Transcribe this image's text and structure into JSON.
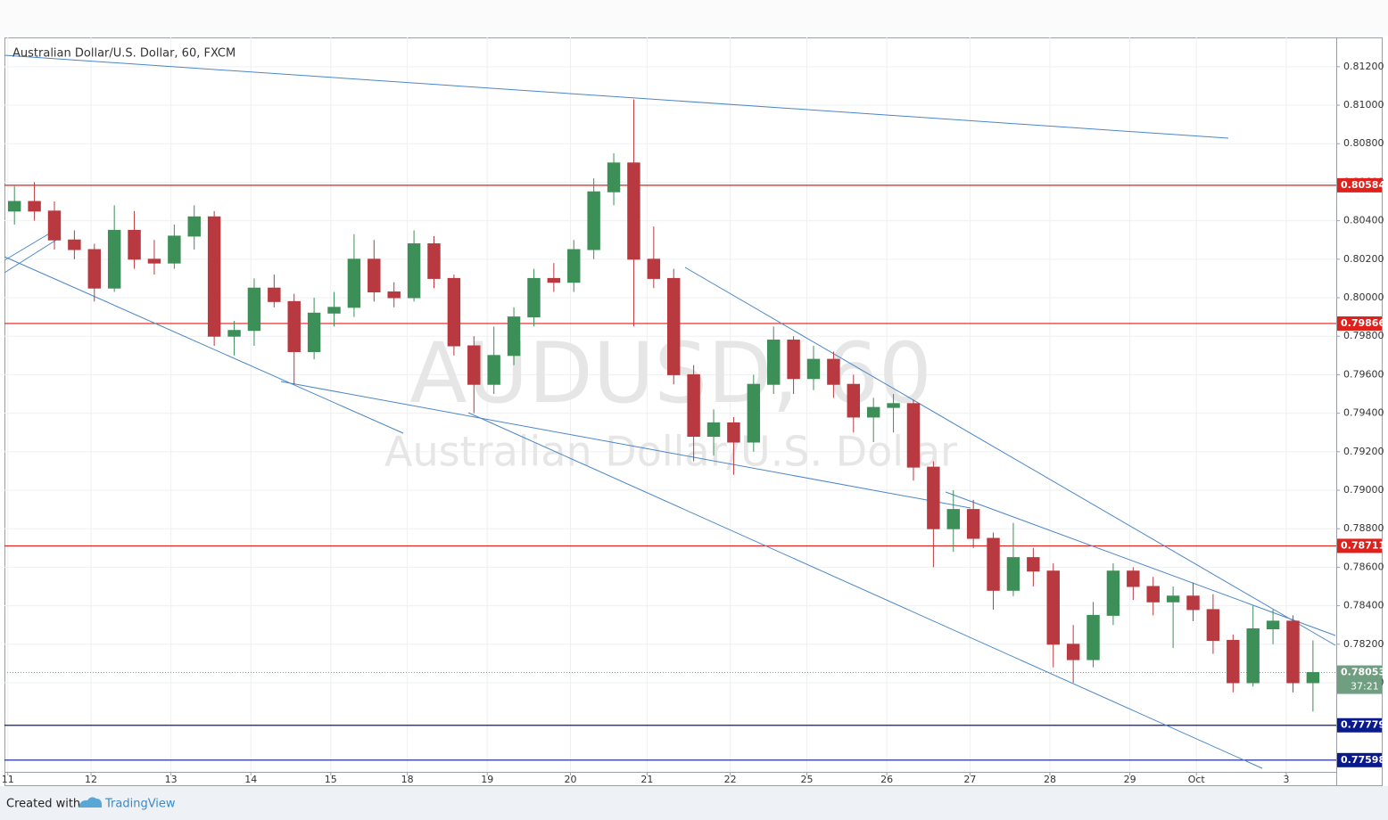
{
  "chart_data": {
    "type": "candlestick",
    "title": "Australian Dollar/U.S. Dollar, 60, FXCM",
    "watermark": "AUDUSD, 60",
    "watermark_subtitle": "Australian Dollar/U.S. Dollar",
    "up_color": "#3d8f58",
    "down_color": "#b8393f",
    "grid": true,
    "x": [
      3,
      9,
      15,
      21,
      27,
      33,
      39,
      45,
      51,
      57,
      63,
      69,
      75,
      81,
      87,
      93,
      99,
      105,
      111,
      117,
      123,
      129,
      135,
      141,
      147,
      153,
      159,
      165,
      171,
      177,
      183,
      189,
      195,
      201,
      207,
      213,
      219,
      225,
      231,
      237,
      243,
      249,
      255,
      261,
      267,
      273,
      279,
      285,
      291,
      297,
      303,
      309,
      315,
      321,
      327,
      333,
      339,
      345,
      351,
      357,
      363,
      369,
      375,
      381,
      387,
      393
    ],
    "open": [
      0.8045,
      0.805,
      0.8045,
      0.803,
      0.8025,
      0.8005,
      0.8035,
      0.802,
      0.8018,
      0.8032,
      0.8042,
      0.798,
      0.7983,
      0.8005,
      0.7998,
      0.7972,
      0.7992,
      0.7995,
      0.802,
      0.8003,
      0.8,
      0.8028,
      0.801,
      0.7975,
      0.7955,
      0.797,
      0.799,
      0.801,
      0.8008,
      0.8025,
      0.8055,
      0.807,
      0.802,
      0.801,
      0.796,
      0.7928,
      0.7935,
      0.7925,
      0.7955,
      0.7978,
      0.7958,
      0.7968,
      0.7955,
      0.7938,
      0.7943,
      0.7945,
      0.7912,
      0.788,
      0.789,
      0.7875,
      0.7848,
      0.7865,
      0.7858,
      0.782,
      0.7812,
      0.7835,
      0.7858,
      0.785,
      0.7842,
      0.7845,
      0.7838,
      0.7822,
      0.78,
      0.7828,
      0.7832,
      0.78
    ],
    "high": [
      0.8058,
      0.806,
      0.805,
      0.8035,
      0.8028,
      0.8048,
      0.8045,
      0.803,
      0.8038,
      0.8048,
      0.8045,
      0.7988,
      0.801,
      0.8012,
      0.8002,
      0.8,
      0.8003,
      0.8033,
      0.803,
      0.8008,
      0.8035,
      0.8032,
      0.8012,
      0.798,
      0.7985,
      0.7995,
      0.8015,
      0.8018,
      0.803,
      0.8062,
      0.8075,
      0.8103,
      0.8037,
      0.8015,
      0.7965,
      0.7942,
      0.7938,
      0.796,
      0.7985,
      0.798,
      0.7975,
      0.7972,
      0.796,
      0.7948,
      0.795,
      0.7947,
      0.7915,
      0.79,
      0.7895,
      0.7878,
      0.7883,
      0.787,
      0.7862,
      0.783,
      0.7842,
      0.7862,
      0.786,
      0.7855,
      0.785,
      0.7852,
      0.7846,
      0.7825,
      0.784,
      0.7838,
      0.7835,
      0.7822
    ],
    "low": [
      0.8038,
      0.804,
      0.8025,
      0.802,
      0.7998,
      0.8003,
      0.8015,
      0.8012,
      0.8015,
      0.8025,
      0.7975,
      0.797,
      0.7975,
      0.7995,
      0.7955,
      0.7968,
      0.7985,
      0.799,
      0.7998,
      0.7995,
      0.7998,
      0.8005,
      0.797,
      0.794,
      0.795,
      0.7965,
      0.7985,
      0.8003,
      0.8003,
      0.802,
      0.8048,
      0.7985,
      0.8005,
      0.7955,
      0.7915,
      0.7918,
      0.7908,
      0.792,
      0.795,
      0.795,
      0.7952,
      0.7948,
      0.793,
      0.7925,
      0.793,
      0.7905,
      0.786,
      0.7868,
      0.787,
      0.7838,
      0.7845,
      0.785,
      0.7808,
      0.78,
      0.7808,
      0.783,
      0.7843,
      0.7835,
      0.7818,
      0.7832,
      0.7815,
      0.7795,
      0.7798,
      0.782,
      0.7795,
      0.7785
    ],
    "close": [
      0.805,
      0.8045,
      0.803,
      0.8025,
      0.8005,
      0.8035,
      0.802,
      0.8018,
      0.8032,
      0.8042,
      0.798,
      0.7983,
      0.8005,
      0.7998,
      0.7972,
      0.7992,
      0.7995,
      0.802,
      0.8003,
      0.8,
      0.8028,
      0.801,
      0.7975,
      0.7955,
      0.797,
      0.799,
      0.801,
      0.8008,
      0.8025,
      0.8055,
      0.807,
      0.802,
      0.801,
      0.796,
      0.7928,
      0.7935,
      0.7925,
      0.7955,
      0.7978,
      0.7958,
      0.7968,
      0.7955,
      0.7938,
      0.7943,
      0.7945,
      0.7912,
      0.788,
      0.789,
      0.7875,
      0.7848,
      0.7865,
      0.7858,
      0.782,
      0.7812,
      0.7835,
      0.7858,
      0.785,
      0.7842,
      0.7845,
      0.7838,
      0.7822,
      0.78,
      0.7828,
      0.7832,
      0.78,
      0.78053
    ],
    "xlim": [
      0,
      400
    ],
    "xticks": [
      {
        "value": 1,
        "label": "11"
      },
      {
        "value": 26,
        "label": "12"
      },
      {
        "value": 50,
        "label": "13"
      },
      {
        "value": 74,
        "label": "14"
      },
      {
        "value": 98,
        "label": "15"
      },
      {
        "value": 121,
        "label": "18"
      },
      {
        "value": 145,
        "label": "19"
      },
      {
        "value": 170,
        "label": "20"
      },
      {
        "value": 193,
        "label": "21"
      },
      {
        "value": 218,
        "label": "22"
      },
      {
        "value": 241,
        "label": "25"
      },
      {
        "value": 265,
        "label": "26"
      },
      {
        "value": 290,
        "label": "27"
      },
      {
        "value": 314,
        "label": "28"
      },
      {
        "value": 338,
        "label": "29"
      },
      {
        "value": 358,
        "label": "Oct"
      },
      {
        "value": 385,
        "label": "3"
      }
    ],
    "ylim": [
      0.77537,
      0.81352
    ],
    "yticks": [
      {
        "value": 0.78,
        "label": "0.78000"
      },
      {
        "value": 0.782,
        "label": "0.78200"
      },
      {
        "value": 0.784,
        "label": "0.78400"
      },
      {
        "value": 0.786,
        "label": "0.78600"
      },
      {
        "value": 0.788,
        "label": "0.78800"
      },
      {
        "value": 0.79,
        "label": "0.79000"
      },
      {
        "value": 0.792,
        "label": "0.79200"
      },
      {
        "value": 0.794,
        "label": "0.79400"
      },
      {
        "value": 0.796,
        "label": "0.79600"
      },
      {
        "value": 0.798,
        "label": "0.79800"
      },
      {
        "value": 0.8,
        "label": "0.80000"
      },
      {
        "value": 0.802,
        "label": "0.80200"
      },
      {
        "value": 0.804,
        "label": "0.80400"
      },
      {
        "value": 0.806,
        "label": "0.80600"
      },
      {
        "value": 0.808,
        "label": "0.80800"
      },
      {
        "value": 0.81,
        "label": "0.81000"
      },
      {
        "value": 0.812,
        "label": "0.81200"
      }
    ],
    "levels": [
      {
        "value": 0.80584,
        "color": "#e0201b"
      },
      {
        "value": 0.79866,
        "color": "#e0201b"
      },
      {
        "value": 0.78711,
        "color": "#e0201b"
      },
      {
        "value": 0.77779,
        "color": "#0a1a8c"
      },
      {
        "value": 0.77598,
        "color": "#0a1a8c"
      }
    ],
    "last_price": {
      "value": 0.78053,
      "countdown": "37:21",
      "color": "#6f9e80"
    }
  },
  "footer": {
    "created_with": "Created with",
    "brand": "TradingView"
  }
}
